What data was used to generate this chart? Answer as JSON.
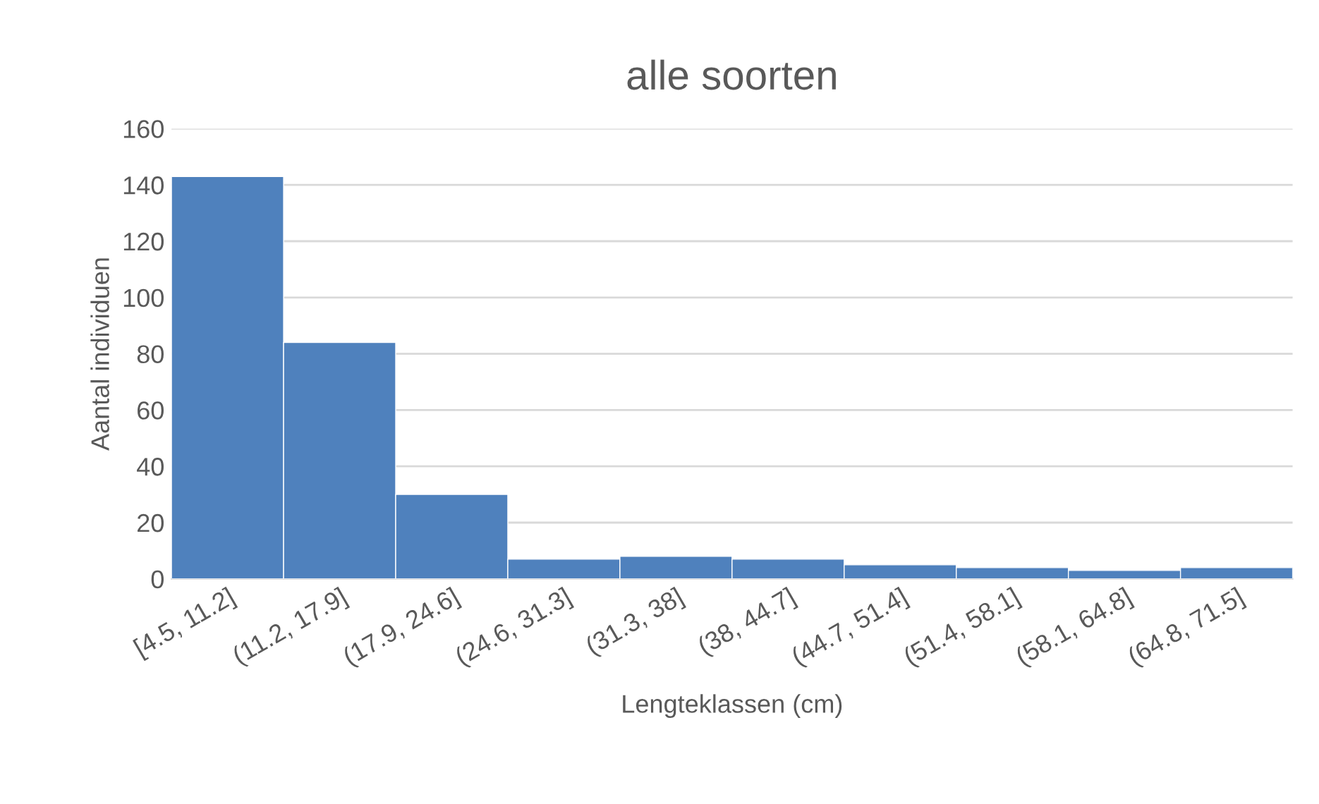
{
  "chart_data": {
    "type": "bar",
    "title": "alle soorten",
    "xlabel": "Lengteklassen (cm)",
    "ylabel": "Aantal individuen",
    "categories": [
      "[4.5, 11.2]",
      "(11.2, 17.9]",
      "(17.9, 24.6]",
      "(24.6, 31.3]",
      "(31.3, 38]",
      "(38, 44.7]",
      "(44.7, 51.4]",
      "(51.4, 58.1]",
      "(58.1, 64.8]",
      "(64.8, 71.5]"
    ],
    "values": [
      143,
      84,
      30,
      7,
      8,
      7,
      5,
      4,
      3,
      4
    ],
    "color": "#4f81bd",
    "ylim": [
      0,
      160
    ],
    "yticks": [
      0,
      20,
      40,
      60,
      80,
      100,
      120,
      140,
      160
    ],
    "grid": "y"
  }
}
